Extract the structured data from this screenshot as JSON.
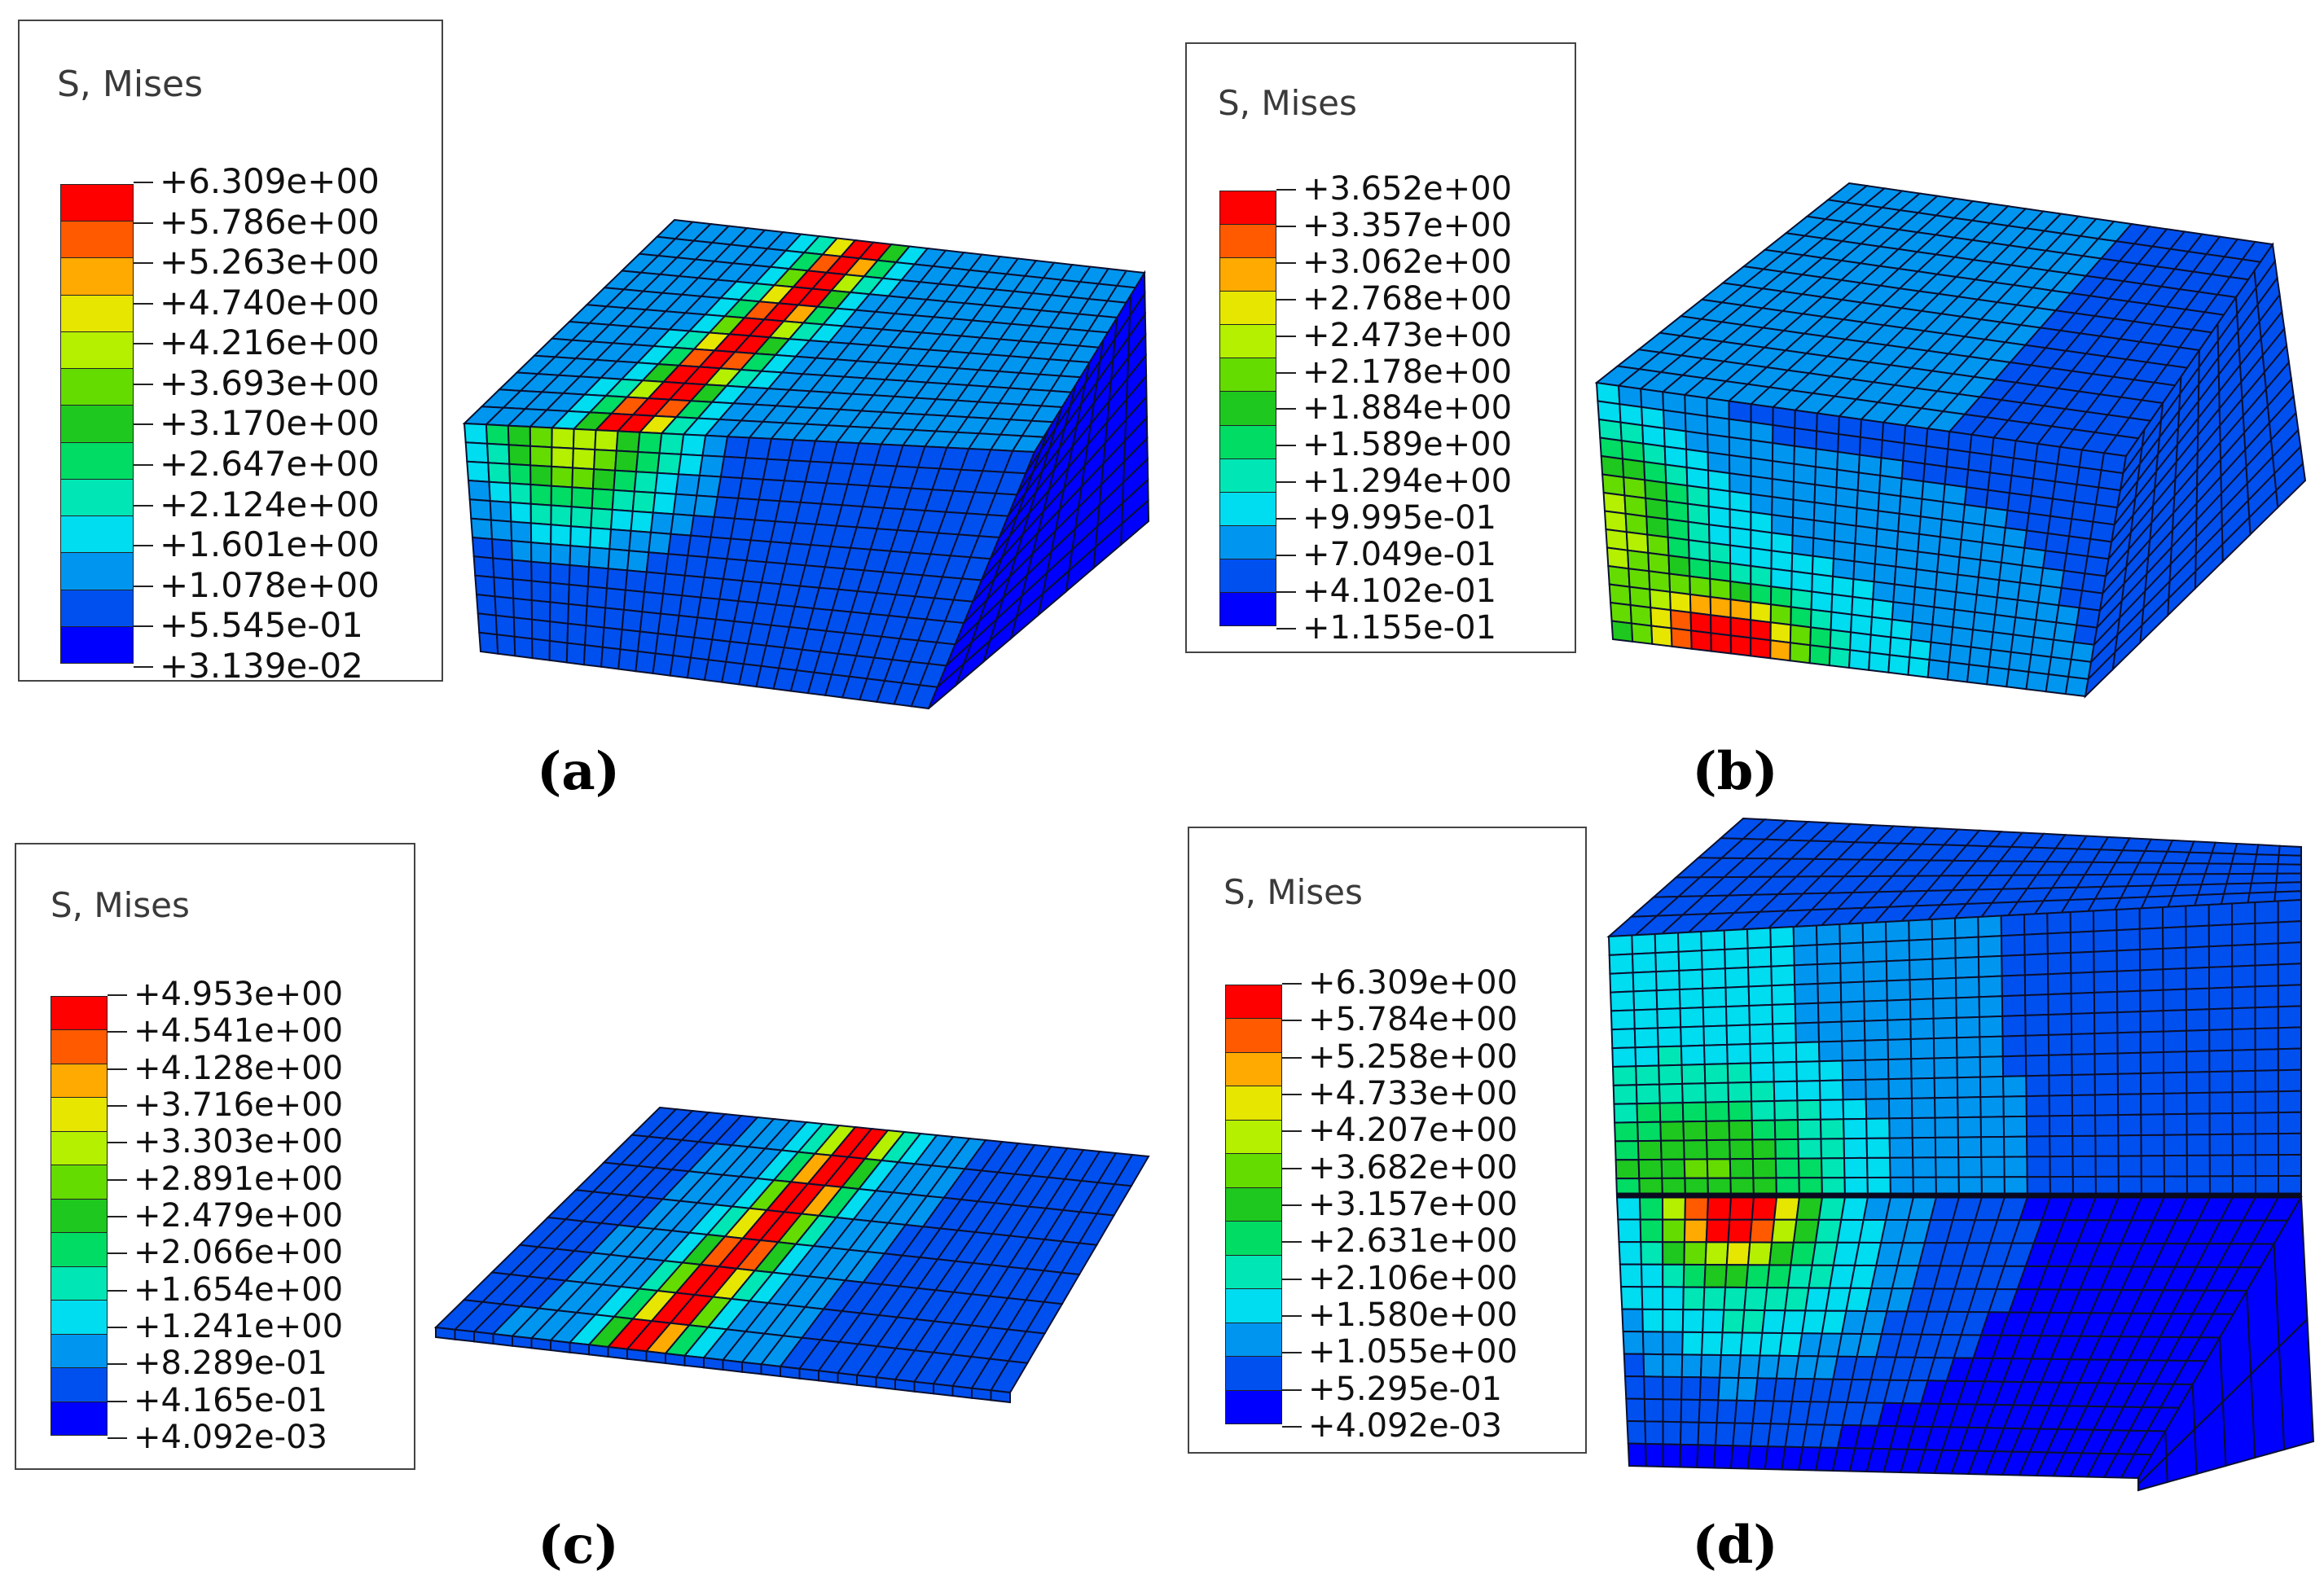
{
  "panels": [
    {
      "id": "a",
      "label": "(a)",
      "legend_title": "S, Mises",
      "legend_values": [
        "+6.309e+00",
        "+5.786e+00",
        "+5.263e+00",
        "+4.740e+00",
        "+4.216e+00",
        "+3.693e+00",
        "+3.170e+00",
        "+2.647e+00",
        "+2.124e+00",
        "+1.601e+00",
        "+1.078e+00",
        "+5.545e-01",
        "+3.139e-02"
      ]
    },
    {
      "id": "b",
      "label": "(b)",
      "legend_title": "S, Mises",
      "legend_values": [
        "+3.652e+00",
        "+3.357e+00",
        "+3.062e+00",
        "+2.768e+00",
        "+2.473e+00",
        "+2.178e+00",
        "+1.884e+00",
        "+1.589e+00",
        "+1.294e+00",
        "+9.995e-01",
        "+7.049e-01",
        "+4.102e-01",
        "+1.155e-01"
      ]
    },
    {
      "id": "c",
      "label": "(c)",
      "legend_title": "S, Mises",
      "legend_values": [
        "+4.953e+00",
        "+4.541e+00",
        "+4.128e+00",
        "+3.716e+00",
        "+3.303e+00",
        "+2.891e+00",
        "+2.479e+00",
        "+2.066e+00",
        "+1.654e+00",
        "+1.241e+00",
        "+8.289e-01",
        "+4.165e-01",
        "+4.092e-03"
      ]
    },
    {
      "id": "d",
      "label": "(d)",
      "legend_title": "S, Mises",
      "legend_values": [
        "+6.309e+00",
        "+5.784e+00",
        "+5.258e+00",
        "+4.733e+00",
        "+4.207e+00",
        "+3.682e+00",
        "+3.157e+00",
        "+2.631e+00",
        "+2.106e+00",
        "+1.580e+00",
        "+1.055e+00",
        "+5.295e-01",
        "+4.092e-03"
      ]
    }
  ],
  "colormap": [
    "#ff0000",
    "#ff5a00",
    "#ffaa00",
    "#e6e600",
    "#b4f000",
    "#64dc00",
    "#1ec81e",
    "#00dc64",
    "#00e6b4",
    "#00dcf0",
    "#0096f0",
    "#0050f0",
    "#0000ff"
  ],
  "fem_colors": {
    "edge": "#0a1030",
    "top_base": "#1f4fd8",
    "front_base": "#1e3ce0",
    "side_base": "#0a14b8",
    "side_dark": "#0a0ea0"
  }
}
